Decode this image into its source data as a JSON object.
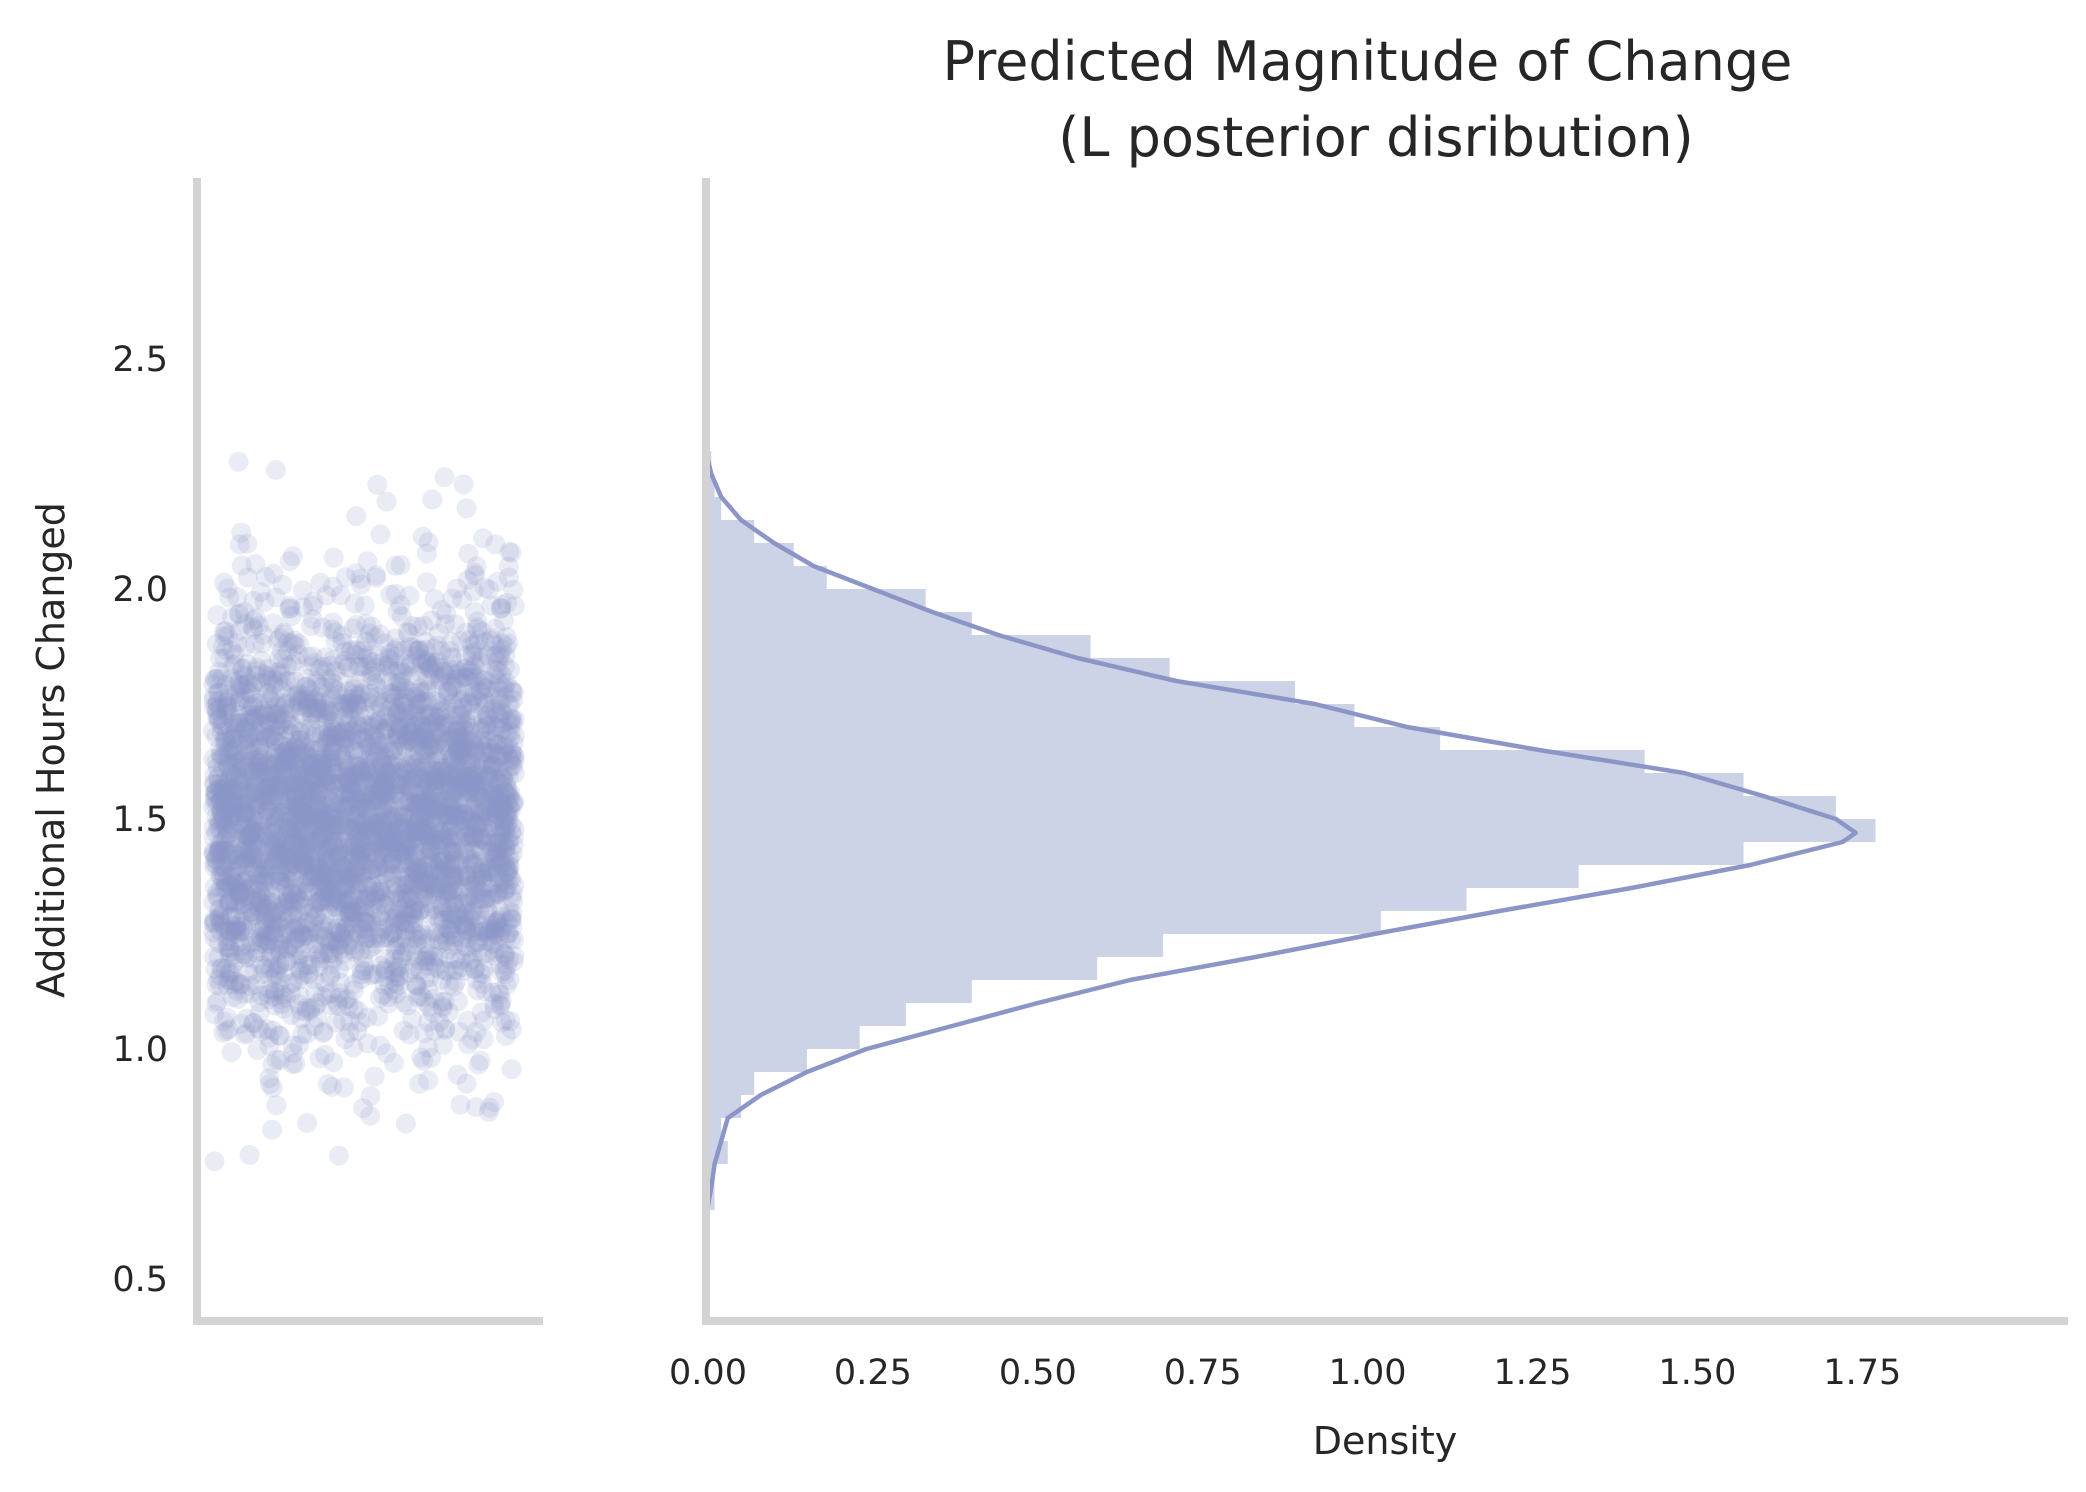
{
  "chart_data": [
    {
      "type": "scatter",
      "role": "strip-plot",
      "ylabel": "Additional Hours Changed",
      "ylim": [
        0.4,
        2.9
      ],
      "yticks": [
        "0.5",
        "1.0",
        "1.5",
        "2.0",
        "2.5"
      ],
      "x": "jittered (no axis)",
      "points": {
        "count": 4000,
        "mean": 1.5,
        "sd": 0.22,
        "min": 0.6,
        "max": 2.28
      },
      "color": "#8C96C6",
      "alpha": 0.18
    },
    {
      "type": "bar",
      "orientation": "horizontal",
      "role": "histogram-with-kde",
      "title": "Predicted Magnitude of Change\n(L posterior disribution)",
      "title_lines": [
        "Predicted Magnitude of Change",
        "(L posterior disribution)"
      ],
      "xlabel": "Density",
      "xlim": [
        0,
        1.85
      ],
      "xticks": [
        "0.00",
        "0.25",
        "0.50",
        "0.75",
        "1.00",
        "1.25",
        "1.50",
        "1.75"
      ],
      "ylim": [
        0.4,
        2.9
      ],
      "bins": [
        {
          "y0": 0.65,
          "y1": 0.7,
          "density": 0.01
        },
        {
          "y0": 0.7,
          "y1": 0.75,
          "density": 0.01
        },
        {
          "y0": 0.75,
          "y1": 0.8,
          "density": 0.03
        },
        {
          "y0": 0.8,
          "y1": 0.85,
          "density": 0.02
        },
        {
          "y0": 0.85,
          "y1": 0.9,
          "density": 0.05
        },
        {
          "y0": 0.9,
          "y1": 0.95,
          "density": 0.07
        },
        {
          "y0": 0.95,
          "y1": 1.0,
          "density": 0.15
        },
        {
          "y0": 1.0,
          "y1": 1.05,
          "density": 0.23
        },
        {
          "y0": 1.05,
          "y1": 1.1,
          "density": 0.3
        },
        {
          "y0": 1.1,
          "y1": 1.15,
          "density": 0.4
        },
        {
          "y0": 1.15,
          "y1": 1.2,
          "density": 0.59
        },
        {
          "y0": 1.2,
          "y1": 1.25,
          "density": 0.69
        },
        {
          "y0": 1.25,
          "y1": 1.3,
          "density": 1.02
        },
        {
          "y0": 1.3,
          "y1": 1.35,
          "density": 1.15
        },
        {
          "y0": 1.35,
          "y1": 1.4,
          "density": 1.32
        },
        {
          "y0": 1.4,
          "y1": 1.45,
          "density": 1.57
        },
        {
          "y0": 1.45,
          "y1": 1.5,
          "density": 1.77
        },
        {
          "y0": 1.5,
          "y1": 1.55,
          "density": 1.71
        },
        {
          "y0": 1.55,
          "y1": 1.6,
          "density": 1.57
        },
        {
          "y0": 1.6,
          "y1": 1.65,
          "density": 1.42
        },
        {
          "y0": 1.65,
          "y1": 1.7,
          "density": 1.11
        },
        {
          "y0": 1.7,
          "y1": 1.75,
          "density": 0.98
        },
        {
          "y0": 1.75,
          "y1": 1.8,
          "density": 0.89
        },
        {
          "y0": 1.8,
          "y1": 1.85,
          "density": 0.7
        },
        {
          "y0": 1.85,
          "y1": 1.9,
          "density": 0.58
        },
        {
          "y0": 1.9,
          "y1": 1.95,
          "density": 0.4
        },
        {
          "y0": 1.95,
          "y1": 2.0,
          "density": 0.33
        },
        {
          "y0": 2.0,
          "y1": 2.05,
          "density": 0.18
        },
        {
          "y0": 2.05,
          "y1": 2.1,
          "density": 0.13
        },
        {
          "y0": 2.1,
          "y1": 2.15,
          "density": 0.07
        },
        {
          "y0": 2.15,
          "y1": 2.2,
          "density": 0.02
        },
        {
          "y0": 2.2,
          "y1": 2.25,
          "density": 0.01
        },
        {
          "y0": 2.25,
          "y1": 2.3,
          "density": 0.005
        }
      ],
      "kde": {
        "y": [
          0.66,
          0.7,
          0.75,
          0.8,
          0.85,
          0.9,
          0.95,
          1.0,
          1.05,
          1.1,
          1.15,
          1.2,
          1.25,
          1.3,
          1.35,
          1.4,
          1.45,
          1.47,
          1.5,
          1.55,
          1.6,
          1.65,
          1.7,
          1.75,
          1.8,
          1.85,
          1.9,
          1.95,
          2.0,
          2.05,
          2.1,
          2.15,
          2.2,
          2.25,
          2.28
        ],
        "density": [
          0.0,
          0.005,
          0.01,
          0.02,
          0.03,
          0.08,
          0.15,
          0.24,
          0.37,
          0.5,
          0.64,
          0.83,
          1.01,
          1.2,
          1.4,
          1.58,
          1.72,
          1.74,
          1.71,
          1.6,
          1.48,
          1.26,
          1.06,
          0.92,
          0.71,
          0.56,
          0.44,
          0.34,
          0.25,
          0.16,
          0.1,
          0.05,
          0.02,
          0.005,
          0.0
        ]
      },
      "bar_color": "#CDD3E7",
      "line_color": "#8C96C6"
    }
  ]
}
